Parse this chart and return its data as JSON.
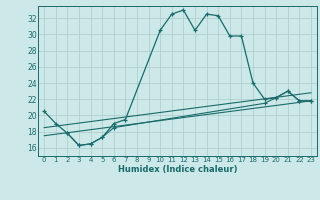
{
  "xlabel": "Humidex (Indice chaleur)",
  "bg_color": "#cce8e8",
  "grid_color": "#aacccc",
  "line_color": "#1a6b6b",
  "xlim": [
    -0.5,
    23.5
  ],
  "ylim": [
    15.0,
    33.5
  ],
  "yticks": [
    16,
    18,
    20,
    22,
    24,
    26,
    28,
    30,
    32
  ],
  "xticks": [
    0,
    1,
    2,
    3,
    4,
    5,
    6,
    7,
    8,
    9,
    10,
    11,
    12,
    13,
    14,
    15,
    16,
    17,
    18,
    19,
    20,
    21,
    22,
    23
  ],
  "series1_x": [
    0,
    1,
    2,
    3,
    4,
    5,
    6,
    7,
    10,
    11,
    12,
    13,
    14,
    15,
    16,
    17,
    18,
    19,
    20,
    21,
    22,
    23
  ],
  "series1_y": [
    20.5,
    19.0,
    17.8,
    16.3,
    16.5,
    17.3,
    19.0,
    19.5,
    30.5,
    32.5,
    33.0,
    30.5,
    32.5,
    32.3,
    29.8,
    29.8,
    24.0,
    22.0,
    22.2,
    23.0,
    21.8,
    21.8
  ],
  "series2_x": [
    0,
    23
  ],
  "series2_y": [
    17.5,
    21.8
  ],
  "series3_x": [
    0,
    23
  ],
  "series3_y": [
    18.5,
    22.8
  ],
  "series4_x": [
    2,
    3,
    4,
    5,
    6,
    19,
    20,
    21,
    22,
    23
  ],
  "series4_y": [
    17.8,
    16.3,
    16.5,
    17.3,
    18.5,
    21.5,
    22.2,
    23.0,
    21.8,
    21.8
  ]
}
